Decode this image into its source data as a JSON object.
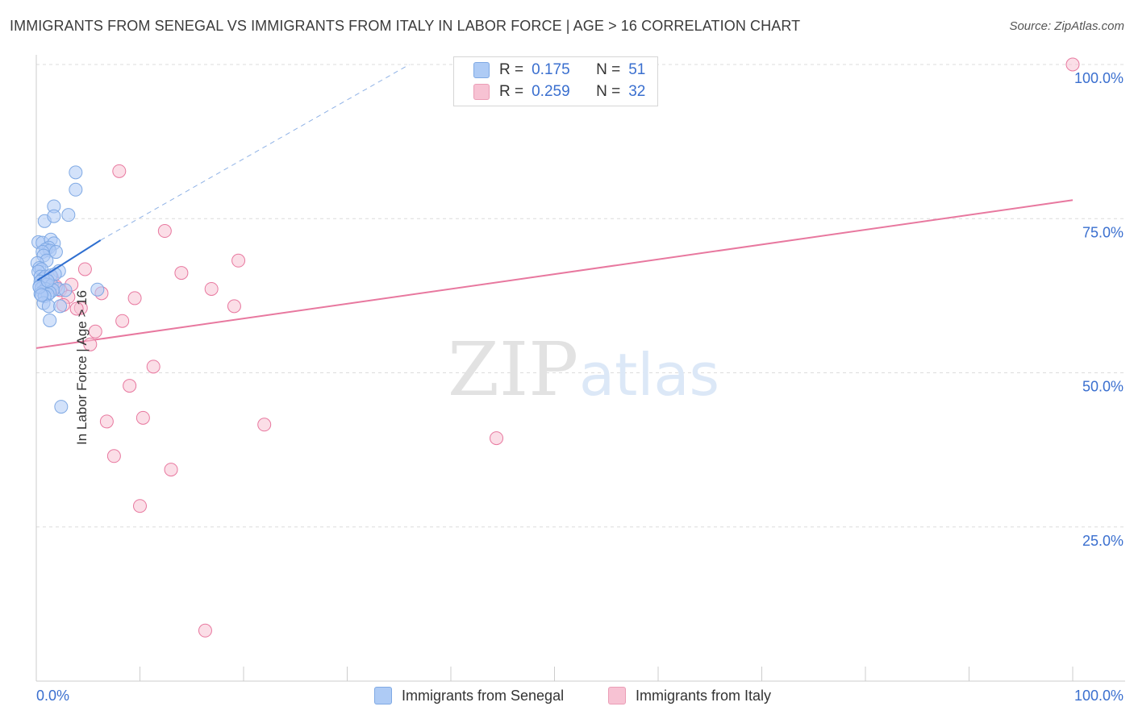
{
  "header": {
    "title": "IMMIGRANTS FROM SENEGAL VS IMMIGRANTS FROM ITALY IN LABOR FORCE | AGE > 16 CORRELATION CHART",
    "source": "Source: ZipAtlas.com"
  },
  "watermark": {
    "zip": "ZIP",
    "atlas": "atlas"
  },
  "legend": {
    "r_label": "R =",
    "n_label": "N =",
    "rows": [
      {
        "r": "0.175",
        "n": "51",
        "color": "#aecbf5",
        "border": "#7fa9e4"
      },
      {
        "r": "0.259",
        "n": "32",
        "color": "#f7c2d3",
        "border": "#eb9db6"
      }
    ]
  },
  "chart_data": {
    "type": "scatter",
    "title": "IMMIGRANTS FROM SENEGAL VS IMMIGRANTS FROM ITALY IN LABOR FORCE | AGE > 16 CORRELATION CHART",
    "xlabel": "",
    "ylabel": "In Labor Force | Age > 16",
    "xlim": [
      0,
      100
    ],
    "ylim": [
      0,
      100
    ],
    "x_tick_labels": [
      "0.0%",
      "100.0%"
    ],
    "y_tick_labels": [
      "25.0%",
      "50.0%",
      "75.0%",
      "100.0%"
    ],
    "y_ticks": [
      25,
      50,
      75,
      100
    ],
    "grid": true,
    "legend_position": "top-center",
    "series": [
      {
        "name": "Immigrants from Senegal",
        "color": "#7fa9e4",
        "fill": "#aecbf5",
        "trend": {
          "x": [
            0.1,
            6.2
          ],
          "y": [
            65.0,
            71.5
          ],
          "extended_to": [
            36,
            100
          ]
        },
        "points": [
          [
            3.8,
            82.5
          ],
          [
            3.8,
            79.7
          ],
          [
            1.7,
            77.0
          ],
          [
            3.1,
            75.6
          ],
          [
            0.8,
            74.6
          ],
          [
            1.7,
            75.4
          ],
          [
            0.2,
            71.2
          ],
          [
            0.6,
            71.1
          ],
          [
            1.4,
            71.6
          ],
          [
            1.7,
            71.0
          ],
          [
            1.2,
            70.3
          ],
          [
            0.9,
            70.0
          ],
          [
            1.3,
            69.8
          ],
          [
            0.6,
            69.6
          ],
          [
            1.9,
            69.6
          ],
          [
            0.7,
            69.0
          ],
          [
            1.0,
            68.2
          ],
          [
            0.1,
            67.8
          ],
          [
            0.3,
            67.0
          ],
          [
            0.5,
            66.8
          ],
          [
            2.2,
            66.5
          ],
          [
            0.2,
            66.4
          ],
          [
            0.4,
            65.6
          ],
          [
            0.6,
            65.2
          ],
          [
            0.9,
            65.6
          ],
          [
            1.4,
            65.8
          ],
          [
            0.4,
            64.8
          ],
          [
            0.7,
            64.5
          ],
          [
            1.0,
            64.3
          ],
          [
            0.3,
            64.0
          ],
          [
            1.5,
            64.2
          ],
          [
            0.5,
            63.7
          ],
          [
            2.1,
            63.6
          ],
          [
            0.9,
            63.6
          ],
          [
            1.6,
            63.4
          ],
          [
            2.8,
            63.4
          ],
          [
            0.6,
            63.1
          ],
          [
            1.3,
            63.0
          ],
          [
            0.4,
            62.8
          ],
          [
            1.1,
            62.7
          ],
          [
            0.8,
            62.4
          ],
          [
            5.9,
            63.5
          ],
          [
            0.7,
            61.3
          ],
          [
            1.2,
            60.8
          ],
          [
            2.3,
            60.8
          ],
          [
            1.3,
            58.5
          ],
          [
            2.4,
            44.5
          ],
          [
            0.3,
            63.9
          ],
          [
            0.5,
            62.6
          ],
          [
            1.8,
            66.0
          ],
          [
            1.1,
            64.9
          ]
        ]
      },
      {
        "name": "Immigrants from Italy",
        "color": "#e8789f",
        "fill": "#f7c2d3",
        "trend": {
          "x": [
            0,
            100
          ],
          "y": [
            54.0,
            78.0
          ]
        },
        "points": [
          [
            100.0,
            100.0
          ],
          [
            8.0,
            82.7
          ],
          [
            12.4,
            73.0
          ],
          [
            19.5,
            68.2
          ],
          [
            4.7,
            66.8
          ],
          [
            14.0,
            66.2
          ],
          [
            1.5,
            65.5
          ],
          [
            3.4,
            64.3
          ],
          [
            1.8,
            63.8
          ],
          [
            2.3,
            63.4
          ],
          [
            16.9,
            63.6
          ],
          [
            6.3,
            62.9
          ],
          [
            3.1,
            62.3
          ],
          [
            9.5,
            62.1
          ],
          [
            4.3,
            60.5
          ],
          [
            3.9,
            60.4
          ],
          [
            19.1,
            60.8
          ],
          [
            8.3,
            58.4
          ],
          [
            5.7,
            56.7
          ],
          [
            5.2,
            54.6
          ],
          [
            11.3,
            51.0
          ],
          [
            9.0,
            47.9
          ],
          [
            10.3,
            42.7
          ],
          [
            6.8,
            42.1
          ],
          [
            22.0,
            41.6
          ],
          [
            44.4,
            39.4
          ],
          [
            7.5,
            36.5
          ],
          [
            13.0,
            34.3
          ],
          [
            10.0,
            28.4
          ],
          [
            16.3,
            8.2
          ],
          [
            1.9,
            64.0
          ],
          [
            2.6,
            61.0
          ]
        ]
      }
    ]
  }
}
